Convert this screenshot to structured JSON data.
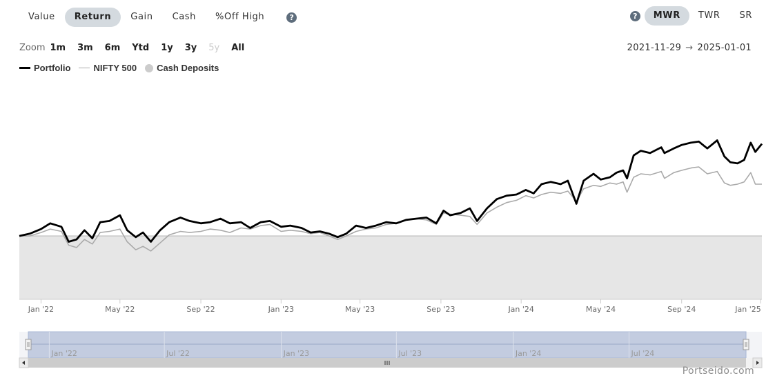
{
  "tabs": [
    {
      "label": "Value",
      "active": false
    },
    {
      "label": "Return",
      "active": true
    },
    {
      "label": "Gain",
      "active": false
    },
    {
      "label": "Cash",
      "active": false
    },
    {
      "label": "%Off High",
      "active": false
    }
  ],
  "help_glyph": "?",
  "method_tabs": [
    {
      "label": "MWR",
      "active": true
    },
    {
      "label": "TWR",
      "active": false
    },
    {
      "label": "SR",
      "active": false
    }
  ],
  "zoom": {
    "label": "Zoom",
    "buttons": [
      {
        "label": "1m",
        "enabled": true
      },
      {
        "label": "3m",
        "enabled": true
      },
      {
        "label": "6m",
        "enabled": true
      },
      {
        "label": "Ytd",
        "enabled": true
      },
      {
        "label": "1y",
        "enabled": true
      },
      {
        "label": "3y",
        "enabled": true
      },
      {
        "label": "5y",
        "enabled": false
      },
      {
        "label": "All",
        "enabled": true
      }
    ]
  },
  "range": {
    "from": "2021-11-29",
    "arrow": "→",
    "to": "2025-01-01"
  },
  "legend": [
    {
      "label": "Portfolio",
      "color": "#000000",
      "marker": "line"
    },
    {
      "label": "NIFTY 500",
      "color": "#aaaaaa",
      "marker": "line"
    },
    {
      "label": "Cash Deposits",
      "color": "#cccccc",
      "marker": "dot"
    }
  ],
  "brand": "Portseido.com",
  "navigator": {
    "tick_labels": [
      "Jan '22",
      "Jul '22",
      "Jan '23",
      "Jul '23",
      "Jan '24",
      "Jul '24"
    ],
    "selected_fraction": [
      0.0,
      1.0
    ]
  },
  "chart_data": {
    "type": "line",
    "x_range": [
      "2021-11-29",
      "2025-01-01"
    ],
    "x_tick_labels": [
      "Jan '22",
      "May '22",
      "Sep '22",
      "Jan '23",
      "May '23",
      "Sep '23",
      "Jan '24",
      "May '24",
      "Sep '24",
      "Jan '25"
    ],
    "y_axis_labels_shown": false,
    "ylim": [
      -0.55,
      1.45
    ],
    "colors": {
      "portfolio": "#000000",
      "benchmark": "#aaaaaa",
      "cash_fill": "#e6e6e6",
      "cash_line": "#c8c8c8"
    },
    "series": [
      {
        "name": "Portfolio",
        "x": [
          "2021-11-29",
          "2021-12-15",
          "2022-01-01",
          "2022-01-15",
          "2022-02-01",
          "2022-02-12",
          "2022-02-24",
          "2022-03-08",
          "2022-03-20",
          "2022-04-01",
          "2022-04-15",
          "2022-05-01",
          "2022-05-12",
          "2022-05-25",
          "2022-06-05",
          "2022-06-17",
          "2022-07-01",
          "2022-07-15",
          "2022-08-01",
          "2022-08-15",
          "2022-09-01",
          "2022-09-15",
          "2022-10-01",
          "2022-10-15",
          "2022-11-01",
          "2022-11-15",
          "2022-12-01",
          "2022-12-15",
          "2023-01-01",
          "2023-01-15",
          "2023-02-01",
          "2023-02-15",
          "2023-03-01",
          "2023-03-15",
          "2023-03-28",
          "2023-04-10",
          "2023-04-25",
          "2023-05-10",
          "2023-05-25",
          "2023-06-10",
          "2023-06-25",
          "2023-07-10",
          "2023-07-25",
          "2023-08-10",
          "2023-08-25",
          "2023-09-05",
          "2023-09-15",
          "2023-10-01",
          "2023-10-15",
          "2023-10-26",
          "2023-11-10",
          "2023-11-25",
          "2023-12-10",
          "2023-12-25",
          "2024-01-08",
          "2024-01-20",
          "2024-02-01",
          "2024-02-15",
          "2024-03-01",
          "2024-03-12",
          "2024-03-25",
          "2024-04-05",
          "2024-04-20",
          "2024-05-01",
          "2024-05-15",
          "2024-05-25",
          "2024-06-04",
          "2024-06-10",
          "2024-06-20",
          "2024-07-01",
          "2024-07-15",
          "2024-08-01",
          "2024-08-06",
          "2024-08-20",
          "2024-09-01",
          "2024-09-15",
          "2024-09-27",
          "2024-10-10",
          "2024-10-25",
          "2024-11-05",
          "2024-11-14",
          "2024-11-25",
          "2024-12-05",
          "2024-12-15",
          "2024-12-22",
          "2025-01-01"
        ],
        "values": [
          0.0,
          0.02,
          0.06,
          0.11,
          0.08,
          -0.05,
          -0.03,
          0.05,
          -0.02,
          0.12,
          0.13,
          0.18,
          0.05,
          -0.01,
          0.03,
          -0.05,
          0.05,
          0.12,
          0.16,
          0.13,
          0.11,
          0.12,
          0.15,
          0.11,
          0.12,
          0.07,
          0.12,
          0.13,
          0.08,
          0.09,
          0.07,
          0.03,
          0.04,
          0.02,
          -0.01,
          0.02,
          0.09,
          0.07,
          0.09,
          0.12,
          0.11,
          0.14,
          0.15,
          0.16,
          0.11,
          0.22,
          0.18,
          0.2,
          0.24,
          0.13,
          0.24,
          0.32,
          0.35,
          0.36,
          0.4,
          0.37,
          0.45,
          0.47,
          0.45,
          0.48,
          0.28,
          0.48,
          0.54,
          0.49,
          0.51,
          0.55,
          0.57,
          0.5,
          0.7,
          0.74,
          0.72,
          0.77,
          0.72,
          0.76,
          0.79,
          0.81,
          0.82,
          0.76,
          0.83,
          0.69,
          0.64,
          0.63,
          0.66,
          0.81,
          0.73,
          0.8
        ]
      },
      {
        "name": "NIFTY 500",
        "x": [
          "2021-11-29",
          "2021-12-15",
          "2022-01-01",
          "2022-01-15",
          "2022-02-01",
          "2022-02-12",
          "2022-02-24",
          "2022-03-08",
          "2022-03-20",
          "2022-04-01",
          "2022-04-15",
          "2022-05-01",
          "2022-05-12",
          "2022-05-25",
          "2022-06-05",
          "2022-06-17",
          "2022-07-01",
          "2022-07-15",
          "2022-08-01",
          "2022-08-15",
          "2022-09-01",
          "2022-09-15",
          "2022-10-01",
          "2022-10-15",
          "2022-11-01",
          "2022-11-15",
          "2022-12-01",
          "2022-12-15",
          "2023-01-01",
          "2023-01-15",
          "2023-02-01",
          "2023-02-15",
          "2023-03-01",
          "2023-03-15",
          "2023-03-28",
          "2023-04-10",
          "2023-04-25",
          "2023-05-10",
          "2023-05-25",
          "2023-06-10",
          "2023-06-25",
          "2023-07-10",
          "2023-07-25",
          "2023-08-10",
          "2023-08-25",
          "2023-09-05",
          "2023-09-15",
          "2023-10-01",
          "2023-10-15",
          "2023-10-26",
          "2023-11-10",
          "2023-11-25",
          "2023-12-10",
          "2023-12-25",
          "2024-01-08",
          "2024-01-20",
          "2024-02-01",
          "2024-02-15",
          "2024-03-01",
          "2024-03-12",
          "2024-03-25",
          "2024-04-05",
          "2024-04-20",
          "2024-05-01",
          "2024-05-15",
          "2024-05-25",
          "2024-06-04",
          "2024-06-10",
          "2024-06-20",
          "2024-07-01",
          "2024-07-15",
          "2024-08-01",
          "2024-08-06",
          "2024-08-20",
          "2024-09-01",
          "2024-09-15",
          "2024-09-27",
          "2024-10-10",
          "2024-10-25",
          "2024-11-05",
          "2024-11-14",
          "2024-11-25",
          "2024-12-05",
          "2024-12-15",
          "2024-12-22",
          "2025-01-01"
        ],
        "values": [
          0.0,
          0.0,
          0.03,
          0.06,
          0.04,
          -0.08,
          -0.1,
          -0.03,
          -0.07,
          0.03,
          0.04,
          0.06,
          -0.05,
          -0.12,
          -0.09,
          -0.13,
          -0.06,
          0.01,
          0.04,
          0.03,
          0.04,
          0.06,
          0.05,
          0.03,
          0.07,
          0.06,
          0.09,
          0.1,
          0.04,
          0.05,
          0.04,
          0.02,
          0.03,
          0.0,
          -0.03,
          0.0,
          0.04,
          0.06,
          0.07,
          0.1,
          0.11,
          0.14,
          0.15,
          0.14,
          0.1,
          0.2,
          0.19,
          0.18,
          0.17,
          0.1,
          0.2,
          0.25,
          0.29,
          0.31,
          0.35,
          0.33,
          0.36,
          0.38,
          0.37,
          0.39,
          0.3,
          0.41,
          0.44,
          0.43,
          0.46,
          0.45,
          0.47,
          0.38,
          0.51,
          0.54,
          0.53,
          0.56,
          0.5,
          0.55,
          0.57,
          0.59,
          0.6,
          0.54,
          0.56,
          0.46,
          0.44,
          0.45,
          0.47,
          0.55,
          0.45,
          0.45
        ]
      },
      {
        "name": "Cash Deposits",
        "x": [
          "2021-11-29",
          "2025-01-01"
        ],
        "values": [
          0.0,
          0.0
        ]
      }
    ]
  }
}
